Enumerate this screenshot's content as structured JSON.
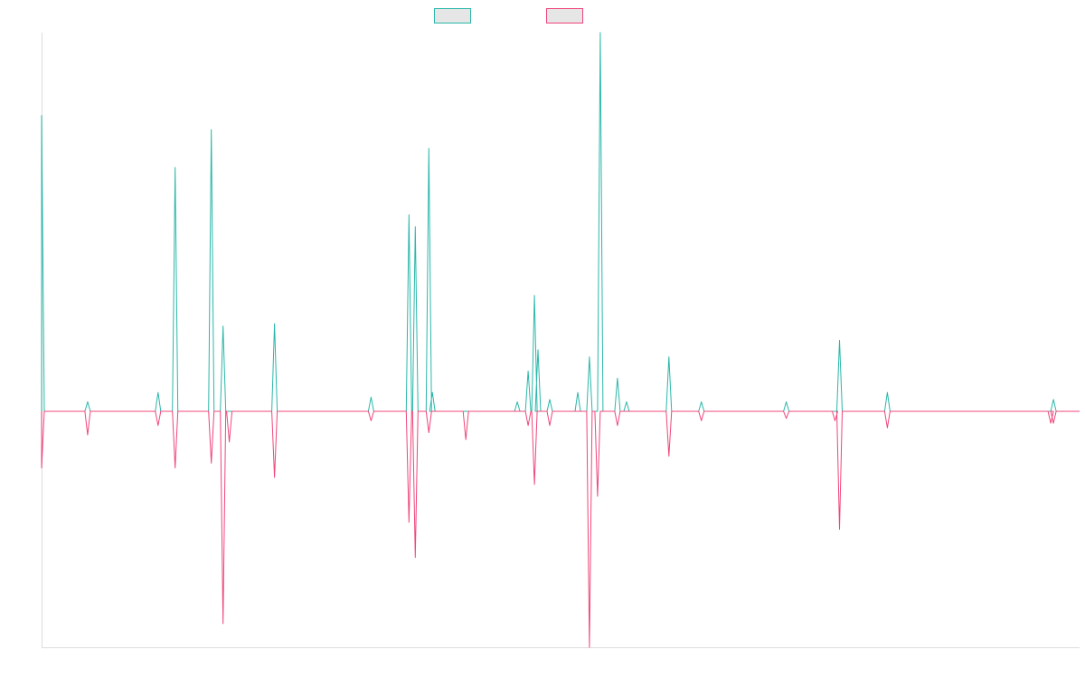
{
  "colors": {
    "series_a": "#2ab7a9",
    "series_b": "#f0457a",
    "legend_fill": "#e6e6e6",
    "axis": "#dddddd"
  },
  "chart_data": {
    "type": "line",
    "title": "",
    "xlabel": "",
    "ylabel": "",
    "x_range": [
      0,
      1150
    ],
    "ylim": [
      -100,
      160
    ],
    "grid": false,
    "legend_placement": "top-center",
    "series": [
      {
        "color_key": "series_a",
        "spikes": [
          [
            0,
            125
          ],
          [
            51,
            4
          ],
          [
            129,
            8
          ],
          [
            148,
            103
          ],
          [
            188,
            119
          ],
          [
            201,
            36
          ],
          [
            258,
            37
          ],
          [
            365,
            6
          ],
          [
            407,
            83
          ],
          [
            414,
            78
          ],
          [
            429,
            111
          ],
          [
            433,
            8
          ],
          [
            527,
            4
          ],
          [
            539,
            17
          ],
          [
            546,
            49
          ],
          [
            550,
            26
          ],
          [
            563,
            5
          ],
          [
            594,
            8
          ],
          [
            607,
            23
          ],
          [
            619,
            160
          ],
          [
            638,
            14
          ],
          [
            648,
            4
          ],
          [
            695,
            23
          ],
          [
            731,
            4
          ],
          [
            825,
            4
          ],
          [
            884,
            30
          ],
          [
            937,
            8
          ],
          [
            1121,
            5
          ]
        ]
      },
      {
        "color_key": "series_b",
        "spikes": [
          [
            0,
            -24
          ],
          [
            51,
            -10
          ],
          [
            129,
            -6
          ],
          [
            148,
            -24
          ],
          [
            188,
            -22
          ],
          [
            201,
            -90
          ],
          [
            208,
            -13
          ],
          [
            258,
            -28
          ],
          [
            365,
            -4
          ],
          [
            407,
            -47
          ],
          [
            414,
            -62
          ],
          [
            429,
            -9
          ],
          [
            470,
            -12
          ],
          [
            539,
            -6
          ],
          [
            546,
            -31
          ],
          [
            563,
            -6
          ],
          [
            607,
            -100
          ],
          [
            616,
            -36
          ],
          [
            638,
            -6
          ],
          [
            695,
            -19
          ],
          [
            731,
            -4
          ],
          [
            825,
            -3
          ],
          [
            879,
            -4
          ],
          [
            884,
            -50
          ],
          [
            937,
            -7
          ],
          [
            1118,
            -5
          ],
          [
            1121,
            -5
          ]
        ]
      }
    ]
  }
}
